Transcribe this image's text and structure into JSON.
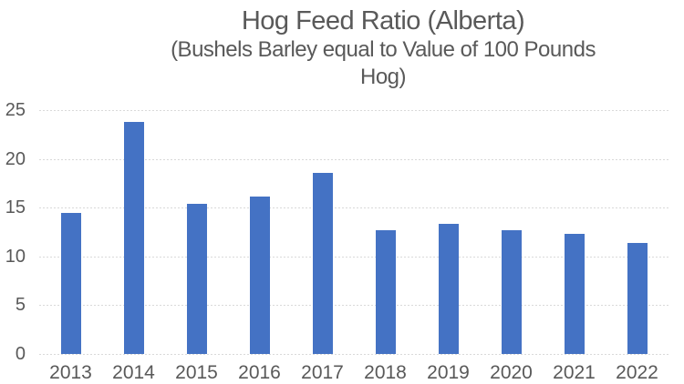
{
  "chart_data": {
    "type": "bar",
    "title": "Hog Feed Ratio (Alberta)",
    "subtitle": "(Bushels Barley equal to Value of 100 Pounds Hog)",
    "subtitle_lines": [
      "(Bushels Barley equal to Value of 100 Pounds",
      "Hog)"
    ],
    "categories": [
      "2013",
      "2014",
      "2015",
      "2016",
      "2017",
      "2018",
      "2019",
      "2020",
      "2021",
      "2022"
    ],
    "series": [
      {
        "name": "Hog Feed Ratio",
        "values": [
          14.5,
          23.8,
          15.4,
          16.1,
          18.6,
          12.7,
          13.3,
          12.7,
          12.3,
          11.4
        ]
      }
    ],
    "xlabel": "",
    "ylabel": "",
    "ylim": [
      0,
      25
    ],
    "yticks": [
      0,
      5,
      10,
      15,
      20,
      25
    ],
    "grid": true,
    "gridline_style": "dotted",
    "legend": false,
    "colors": {
      "bar": "#4472C4",
      "grid": "#D9D9D9",
      "axis": "#D9D9D9",
      "text": "#595959"
    }
  }
}
